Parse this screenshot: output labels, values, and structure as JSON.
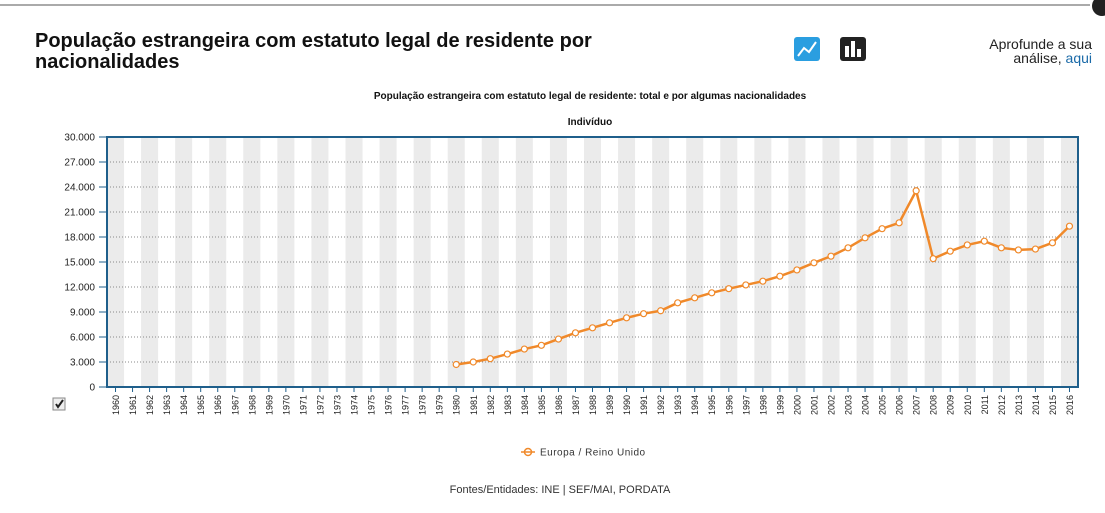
{
  "header": {
    "title_line1": "População estrangeira com estatuto legal de residente por",
    "title_line2": "nacionalidades",
    "aside_line1": "Aprofunde a sua",
    "aside_line2": "análise,",
    "aside_link": "aqui"
  },
  "chart_data": {
    "type": "line",
    "title": "População estrangeira com estatuto legal de residente: total e por algumas nacionalidades",
    "y_label": "Indivíduo",
    "categories": [
      "1960",
      "1961",
      "1962",
      "1963",
      "1964",
      "1965",
      "1966",
      "1967",
      "1968",
      "1969",
      "1970",
      "1971",
      "1972",
      "1973",
      "1974",
      "1975",
      "1976",
      "1977",
      "1978",
      "1979",
      "1980",
      "1981",
      "1982",
      "1983",
      "1984",
      "1985",
      "1986",
      "1987",
      "1988",
      "1989",
      "1990",
      "1991",
      "1992",
      "1993",
      "1994",
      "1995",
      "1996",
      "1997",
      "1998",
      "1999",
      "2000",
      "2001",
      "2002",
      "2003",
      "2004",
      "2005",
      "2006",
      "2007",
      "2008",
      "2009",
      "2010",
      "2011",
      "2012",
      "2013",
      "2014",
      "2015",
      "2016"
    ],
    "series": [
      {
        "name": "Europa / Reino Unido",
        "color": "#f0892a",
        "values": [
          null,
          null,
          null,
          null,
          null,
          null,
          null,
          null,
          null,
          null,
          null,
          null,
          null,
          null,
          null,
          null,
          null,
          null,
          null,
          null,
          2700,
          3000,
          3400,
          3950,
          4550,
          5000,
          5750,
          6500,
          7100,
          7700,
          8300,
          8800,
          9150,
          10100,
          10700,
          11300,
          11800,
          12250,
          12700,
          13300,
          14050,
          14900,
          15700,
          16700,
          17900,
          19000,
          19700,
          23550,
          15400,
          16300,
          17050,
          17500,
          16700,
          16450,
          16550,
          17300,
          19300
        ]
      }
    ],
    "ylim": [
      0,
      30000
    ],
    "yticks": [
      0,
      {
        "value": 3000,
        "label": "3.000"
      },
      {
        "value": 6000,
        "label": "6.000"
      },
      {
        "value": 9000,
        "label": "9.000"
      },
      {
        "value": 12000,
        "label": "12.000"
      },
      {
        "value": 15000,
        "label": "15.000"
      },
      {
        "value": 18000,
        "label": "18.000"
      },
      {
        "value": 21000,
        "label": "21.000"
      },
      {
        "value": 24000,
        "label": "24.000"
      },
      {
        "value": 27000,
        "label": "27.000"
      },
      {
        "value": 30000,
        "label": "30.000"
      }
    ],
    "grid": true
  },
  "footer": {
    "source": "Fontes/Entidades: INE | SEF/MAI, PORDATA"
  }
}
